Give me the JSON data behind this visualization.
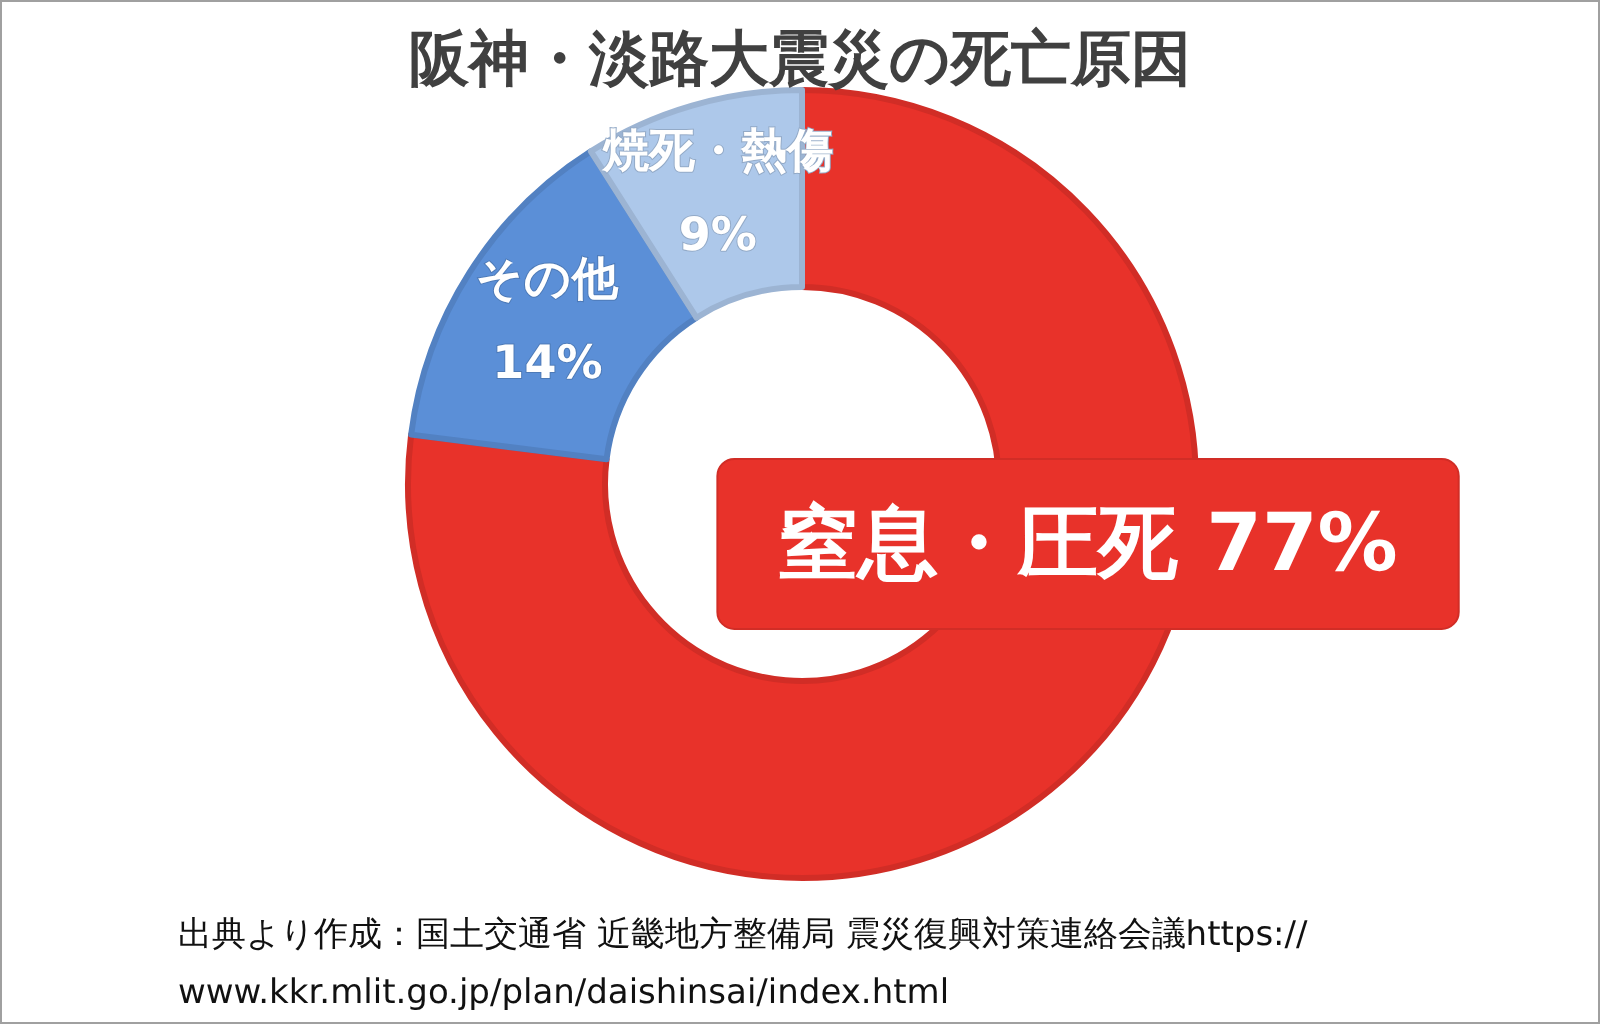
{
  "chart_data": {
    "type": "donut",
    "title": "阪神・淡路大震災の死亡原因",
    "categories": [
      "窒息・圧死",
      "その他",
      "焼死・熱傷"
    ],
    "values": [
      77,
      14,
      9
    ],
    "colors": [
      "#e8322a",
      "#5b8fd7",
      "#adc8ea"
    ],
    "value_labels": [
      "77%",
      "14%",
      "9%"
    ],
    "annotations": [
      "出典より作成：国土交通省 近畿地方整備局 震災復興対策連絡会議https://www.kkr.mlit.go.jp/plan/daishinsai/index.html"
    ]
  }
}
